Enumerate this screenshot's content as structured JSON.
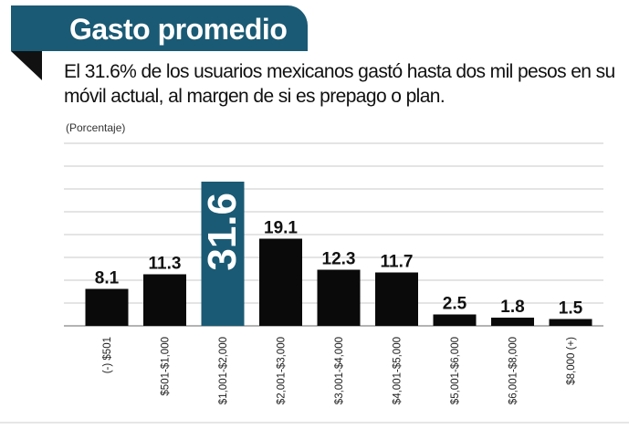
{
  "header": {
    "title": "Gasto promedio",
    "subtitle": "El 31.6% de los usuarios mexicanos gastó hasta dos mil pesos en su móvil actual, al margen de si es prepago o plan.",
    "unit": "(Porcentaje)"
  },
  "colors": {
    "title_bg": "#1a5a74",
    "bar": "#0a0a0a",
    "highlight_bar": "#1a5a74",
    "grid": "#c9c9c9"
  },
  "chart_data": {
    "type": "bar",
    "title": "Gasto promedio",
    "ylabel": "(Porcentaje)",
    "categories": [
      "(-) $501",
      "$501-$1,000",
      "$1,001-$2,000",
      "$2,001-$3,000",
      "$3,001-$4,000",
      "$4,001-$5,000",
      "$5,001-$6,000",
      "$6,001-$8,000",
      "$8,000 (+)"
    ],
    "values": [
      8.1,
      11.3,
      31.6,
      19.1,
      12.3,
      11.7,
      2.5,
      1.8,
      1.5
    ],
    "value_labels": [
      "8.1",
      "11.3",
      "31.6",
      "19.1",
      "12.3",
      "11.7",
      "2.5",
      "1.8",
      "1.5"
    ],
    "highlight_index": 2,
    "ylim": [
      0,
      40
    ],
    "grid": true
  }
}
